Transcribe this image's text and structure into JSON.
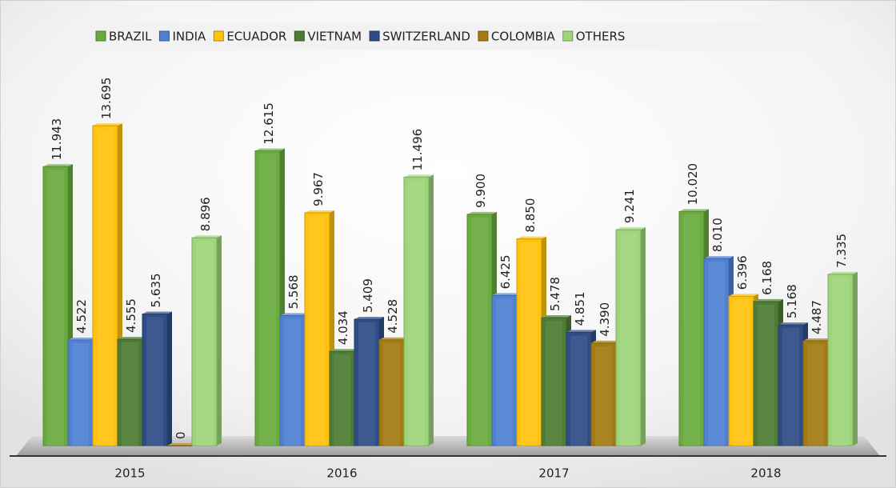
{
  "chart_data": {
    "type": "bar",
    "categories": [
      "2015",
      "2016",
      "2017",
      "2018"
    ],
    "series": [
      {
        "name": "BRAZIL",
        "color": "#6aab3f",
        "values": [
          11.943,
          12.615,
          9.9,
          10.02
        ],
        "value_labels": [
          "11.943",
          "12.615",
          "9.900",
          "10.020"
        ]
      },
      {
        "name": "INDIA",
        "color": "#4f80d1",
        "values": [
          4.522,
          5.568,
          6.425,
          8.01
        ],
        "value_labels": [
          "4.522",
          "5.568",
          "6.425",
          "8.010"
        ]
      },
      {
        "name": "ECUADOR",
        "color": "#ffc20e",
        "values": [
          13.695,
          9.967,
          8.85,
          6.396
        ],
        "value_labels": [
          "13.695",
          "9.967",
          "8.850",
          "6.396"
        ]
      },
      {
        "name": "VIETNAM",
        "color": "#4e7c34",
        "values": [
          4.555,
          4.034,
          5.478,
          6.168
        ],
        "value_labels": [
          "4.555",
          "4.034",
          "5.478",
          "6.168"
        ]
      },
      {
        "name": "SWITZERLAND",
        "color": "#2e4d86",
        "values": [
          5.635,
          5.409,
          4.851,
          5.168
        ],
        "value_labels": [
          "5.635",
          "5.409",
          "4.851",
          "5.168"
        ]
      },
      {
        "name": "COLOMBIA",
        "color": "#a27b12",
        "values": [
          0,
          4.528,
          4.39,
          4.487
        ],
        "value_labels": [
          "0",
          "4.528",
          "4.390",
          "4.487"
        ]
      },
      {
        "name": "OTHERS",
        "color": "#9ed57a",
        "values": [
          8.896,
          11.496,
          9.241,
          7.335
        ],
        "value_labels": [
          "8.896",
          "11.496",
          "9.241",
          "7.335"
        ]
      }
    ],
    "ylim": [
      0,
      15
    ]
  }
}
